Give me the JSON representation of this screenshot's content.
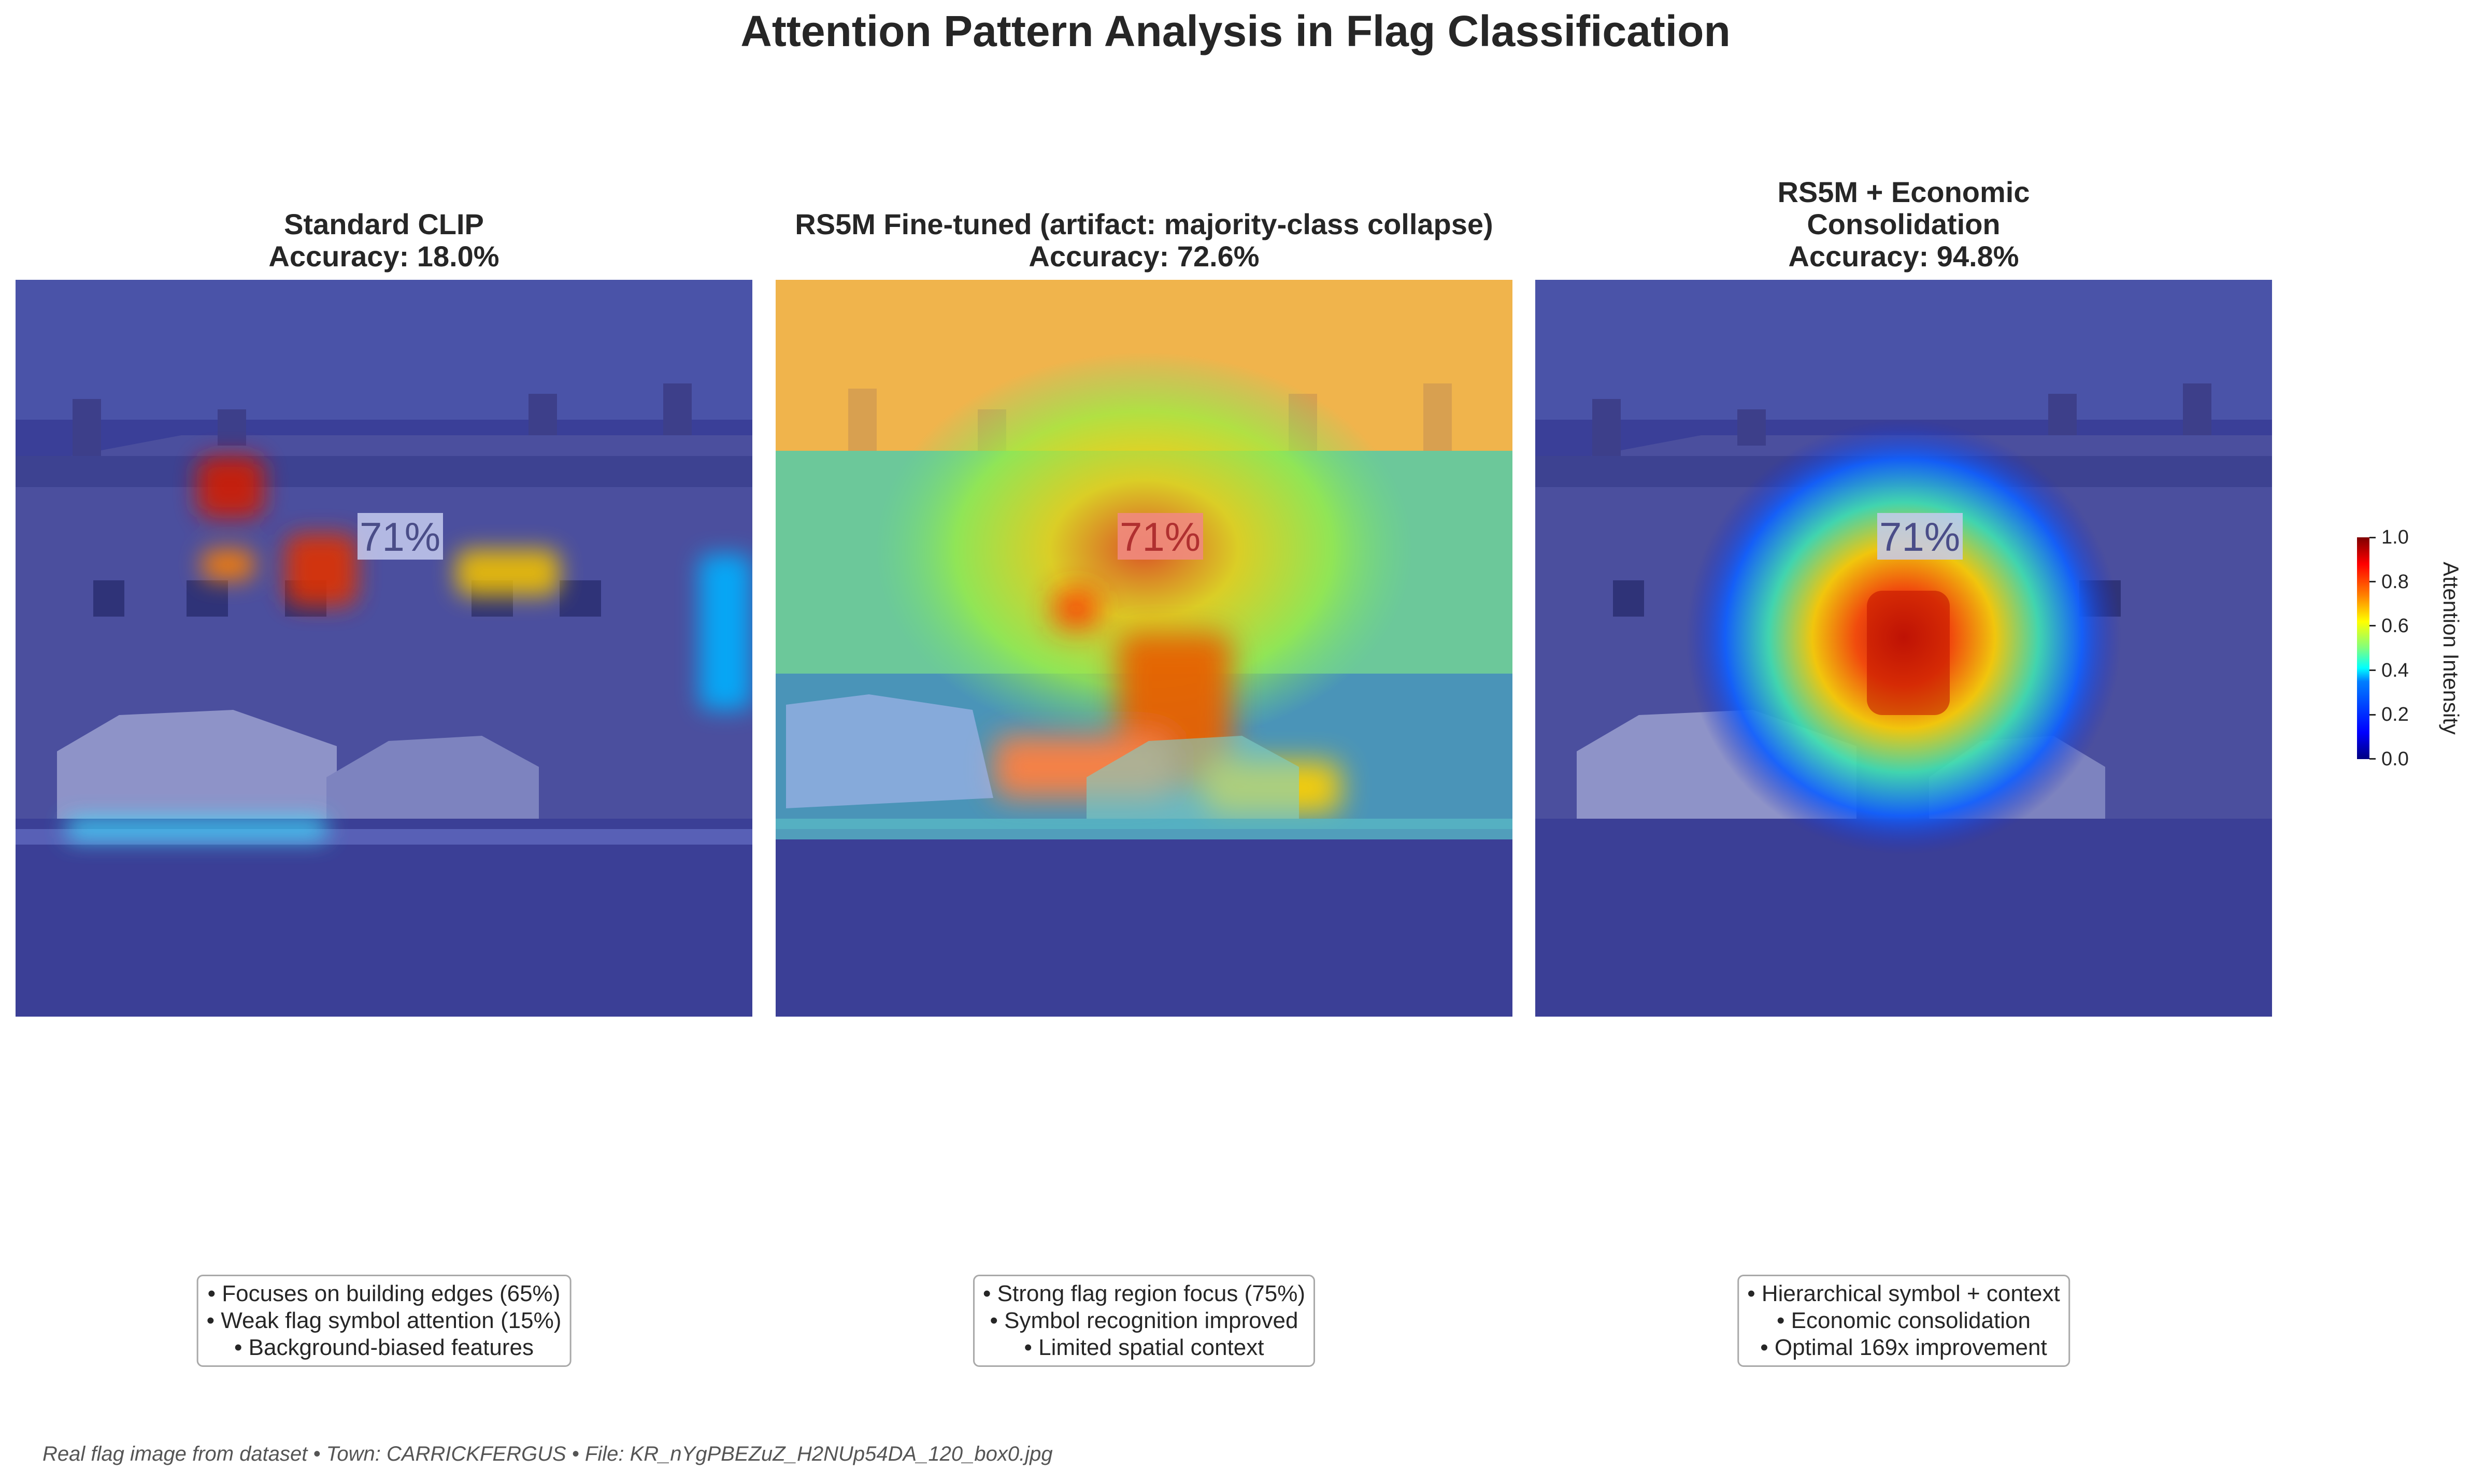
{
  "suptitle": "Attention Pattern Analysis in Flag Classification",
  "panels": [
    {
      "title_lines": [
        "Standard CLIP",
        "Accuracy: 18.0%"
      ],
      "overlay_text": "71%",
      "notes": [
        "• Focuses on building edges (65%)",
        "• Weak flag symbol attention (15%)",
        "• Background-biased features"
      ]
    },
    {
      "title_lines": [
        "RS5M Fine-tuned (artifact: majority-class collapse)",
        "Accuracy: 72.6%"
      ],
      "overlay_text": "71%",
      "notes": [
        "• Strong flag region focus (75%)",
        "• Symbol recognition improved",
        "• Limited spatial context"
      ]
    },
    {
      "title_lines": [
        "RS5M + Economic",
        "Consolidation",
        "Accuracy: 94.8%"
      ],
      "overlay_text": "71%",
      "notes": [
        "• Hierarchical symbol + context",
        "• Economic consolidation",
        "• Optimal 169x improvement"
      ]
    }
  ],
  "colorbar": {
    "label": "Attention Intensity",
    "ticks": [
      "0.0",
      "0.2",
      "0.4",
      "0.6",
      "0.8",
      "1.0"
    ],
    "colormap": "jet"
  },
  "footer": "Real flag image from dataset • Town: CARRICKFERGUS • File: KR_nYgPBEZuZ_H2NUp54DA_120_box0.jpg",
  "chart_data": {
    "type": "heatmap",
    "title": "Attention Pattern Analysis in Flag Classification",
    "colorbar_label": "Attention Intensity",
    "value_range": [
      0,
      1
    ],
    "colormap": "jet",
    "models": [
      {
        "name": "Standard CLIP",
        "accuracy_percent": 18.0
      },
      {
        "name": "RS5M Fine-tuned (artifact: majority-class collapse)",
        "accuracy_percent": 72.6
      },
      {
        "name": "RS5M + Economic Consolidation",
        "accuracy_percent": 94.8
      }
    ]
  }
}
